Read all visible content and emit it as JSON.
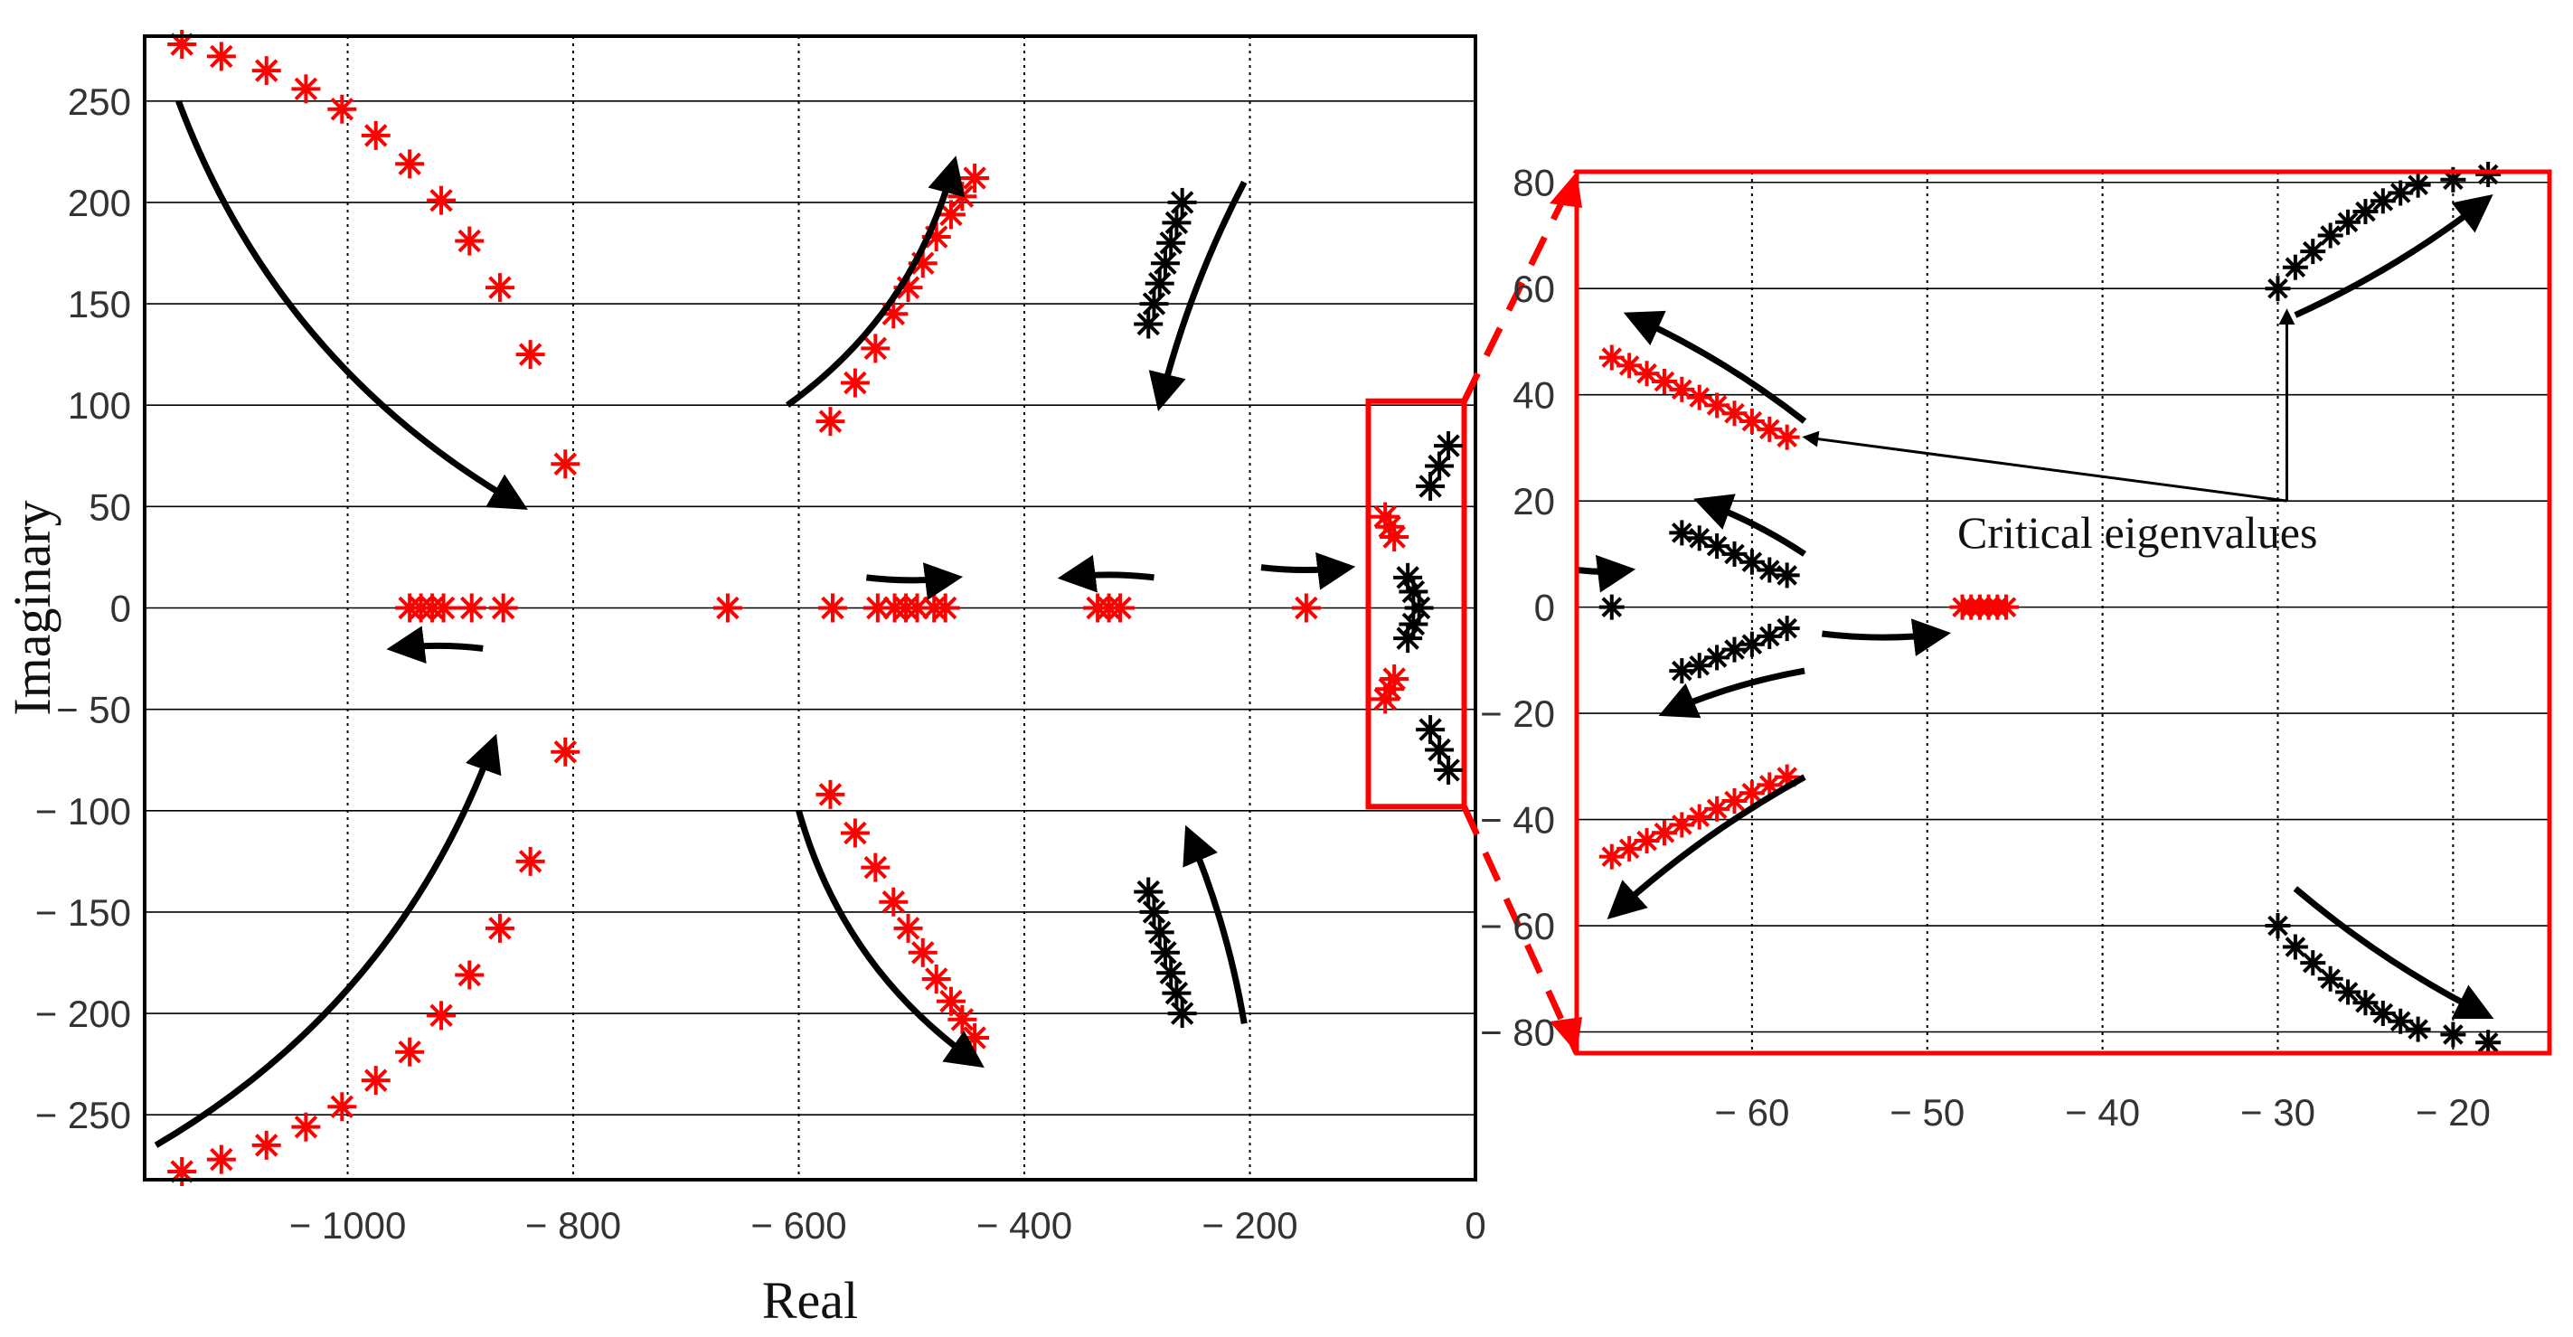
{
  "colors": {
    "red": "#ff0000",
    "black": "#000000",
    "grid_minor": "#9a9a9a",
    "grid_major": "#000000"
  },
  "chart_data": [
    {
      "type": "scatter",
      "title": "",
      "xlabel": "Real",
      "ylabel": "Imaginary",
      "xlim": [
        -1180,
        0
      ],
      "ylim": [
        -282,
        282
      ],
      "xticks": [
        -1000,
        -800,
        -600,
        -400,
        -200,
        0
      ],
      "xtick_labels": [
        "− 1000",
        "− 800",
        "− 600",
        "− 400",
        "− 200",
        "0"
      ],
      "yticks": [
        250,
        200,
        150,
        100,
        50,
        0,
        -50,
        -100,
        -150,
        -200,
        -250
      ],
      "ytick_labels": [
        "250",
        "200",
        "150",
        "100",
        "50",
        "0",
        "− 50",
        "− 100",
        "− 150",
        "− 200",
        "− 250"
      ],
      "grid": true,
      "zoom_box": {
        "x": [
          -95,
          -10
        ],
        "y": [
          -98,
          102
        ]
      },
      "series": [
        {
          "color": "red",
          "marker": "asterisk",
          "points": [
            [
              -1147,
              278
            ],
            [
              -1112,
              272
            ],
            [
              -1072,
              265
            ],
            [
              -1037,
              256
            ],
            [
              -1005,
              246
            ],
            [
              -975,
              233
            ],
            [
              -945,
              219
            ],
            [
              -917,
              201
            ],
            [
              -892,
              181
            ],
            [
              -865,
              158
            ],
            [
              -838,
              125
            ],
            [
              -807,
              71
            ],
            [
              -1147,
              -278
            ],
            [
              -1112,
              -272
            ],
            [
              -1072,
              -265
            ],
            [
              -1037,
              -256
            ],
            [
              -1005,
              -246
            ],
            [
              -975,
              -233
            ],
            [
              -945,
              -219
            ],
            [
              -917,
              -201
            ],
            [
              -892,
              -181
            ],
            [
              -865,
              -158
            ],
            [
              -838,
              -125
            ],
            [
              -807,
              -71
            ],
            [
              -444,
              212
            ],
            [
              -455,
              203
            ],
            [
              -465,
              194
            ],
            [
              -478,
              183
            ],
            [
              -490,
              170
            ],
            [
              -503,
              158
            ],
            [
              -516,
              145
            ],
            [
              -532,
              128
            ],
            [
              -550,
              111
            ],
            [
              -572,
              92
            ],
            [
              -444,
              -212
            ],
            [
              -455,
              -203
            ],
            [
              -465,
              -194
            ],
            [
              -478,
              -183
            ],
            [
              -490,
              -170
            ],
            [
              -503,
              -158
            ],
            [
              -516,
              -145
            ],
            [
              -532,
              -128
            ],
            [
              -550,
              -111
            ],
            [
              -572,
              -92
            ],
            [
              -945,
              0
            ],
            [
              -935,
              0
            ],
            [
              -925,
              0
            ],
            [
              -915,
              0
            ],
            [
              -890,
              0
            ],
            [
              -862,
              0
            ],
            [
              -663,
              0
            ],
            [
              -570,
              0
            ],
            [
              -530,
              0
            ],
            [
              -515,
              0
            ],
            [
              -505,
              0
            ],
            [
              -495,
              0
            ],
            [
              -480,
              0
            ],
            [
              -470,
              0
            ],
            [
              -335,
              0
            ],
            [
              -325,
              0
            ],
            [
              -315,
              0
            ],
            [
              -150,
              0
            ],
            [
              -80,
              45
            ],
            [
              -76,
              40
            ],
            [
              -72,
              35
            ],
            [
              -80,
              -45
            ],
            [
              -76,
              -40
            ],
            [
              -72,
              -35
            ]
          ]
        },
        {
          "color": "black",
          "marker": "asterisk",
          "points": [
            [
              -290,
              140
            ],
            [
              -285,
              150
            ],
            [
              -280,
              160
            ],
            [
              -275,
              170
            ],
            [
              -270,
              180
            ],
            [
              -265,
              190
            ],
            [
              -260,
              200
            ],
            [
              -290,
              -140
            ],
            [
              -285,
              -150
            ],
            [
              -280,
              -160
            ],
            [
              -275,
              -170
            ],
            [
              -270,
              -180
            ],
            [
              -265,
              -190
            ],
            [
              -260,
              -200
            ],
            [
              -40,
              60
            ],
            [
              -32,
              70
            ],
            [
              -24,
              80
            ],
            [
              -40,
              -60
            ],
            [
              -32,
              -70
            ],
            [
              -24,
              -80
            ],
            [
              -60,
              15
            ],
            [
              -55,
              8
            ],
            [
              -50,
              0
            ],
            [
              -55,
              -8
            ],
            [
              -60,
              -15
            ]
          ]
        }
      ],
      "arrows": [
        {
          "from": [
            -1150,
            250
          ],
          "to": [
            -845,
            50
          ]
        },
        {
          "from": [
            -1170,
            -265
          ],
          "to": [
            -870,
            -65
          ]
        },
        {
          "from": [
            -610,
            100
          ],
          "to": [
            -462,
            220
          ]
        },
        {
          "from": [
            -600,
            -100
          ],
          "to": [
            -440,
            -225
          ]
        },
        {
          "from": [
            -205,
            210
          ],
          "to": [
            -280,
            100
          ]
        },
        {
          "from": [
            -205,
            -205
          ],
          "to": [
            -255,
            -110
          ]
        },
        {
          "from": [
            -880,
            -20
          ],
          "to": [
            -960,
            -20
          ]
        },
        {
          "from": [
            -540,
            15
          ],
          "to": [
            -460,
            15
          ]
        },
        {
          "from": [
            -285,
            15
          ],
          "to": [
            -365,
            15
          ]
        },
        {
          "from": [
            -190,
            20
          ],
          "to": [
            -112,
            20
          ]
        }
      ]
    },
    {
      "type": "scatter",
      "title": "",
      "xlabel": "",
      "ylabel": "",
      "xlim": [
        -70,
        -14.5
      ],
      "ylim": [
        -84,
        82
      ],
      "xticks": [
        -60,
        -50,
        -40,
        -30,
        -20
      ],
      "xtick_labels": [
        "− 60",
        "− 50",
        "− 40",
        "− 30",
        "− 20"
      ],
      "yticks": [
        80,
        60,
        40,
        20,
        0,
        -20,
        -40,
        -60,
        -80
      ],
      "ytick_labels": [
        "80",
        "60",
        "40",
        "20",
        "0",
        "− 20",
        "− 40",
        "− 60",
        "− 80"
      ],
      "grid": true,
      "series": [
        {
          "color": "red",
          "marker": "asterisk",
          "points": [
            [
              -68,
              47
            ],
            [
              -67,
              45.5
            ],
            [
              -66,
              44
            ],
            [
              -65,
              42.5
            ],
            [
              -64,
              41
            ],
            [
              -63,
              39.5
            ],
            [
              -62,
              38
            ],
            [
              -61,
              36.5
            ],
            [
              -60,
              35
            ],
            [
              -59,
              33.5
            ],
            [
              -58,
              32
            ],
            [
              -68,
              -47
            ],
            [
              -67,
              -45.5
            ],
            [
              -66,
              -44
            ],
            [
              -65,
              -42.5
            ],
            [
              -64,
              -41
            ],
            [
              -63,
              -39.5
            ],
            [
              -62,
              -38
            ],
            [
              -61,
              -36.5
            ],
            [
              -60,
              -35
            ],
            [
              -59,
              -33.5
            ],
            [
              -58,
              -32
            ],
            [
              -48,
              0
            ],
            [
              -47.5,
              0
            ],
            [
              -47,
              0
            ],
            [
              -46.5,
              0
            ],
            [
              -46,
              0
            ],
            [
              -45.5,
              0
            ]
          ]
        },
        {
          "color": "black",
          "marker": "asterisk",
          "points": [
            [
              -30,
              60
            ],
            [
              -29,
              64
            ],
            [
              -28,
              67
            ],
            [
              -27,
              70
            ],
            [
              -26,
              72.5
            ],
            [
              -25,
              74.5
            ],
            [
              -24,
              76.5
            ],
            [
              -23,
              78
            ],
            [
              -22,
              79.5
            ],
            [
              -20,
              80.5
            ],
            [
              -18,
              81.5
            ],
            [
              -30,
              -60
            ],
            [
              -29,
              -64
            ],
            [
              -28,
              -67
            ],
            [
              -27,
              -70
            ],
            [
              -26,
              -72.5
            ],
            [
              -25,
              -74.5
            ],
            [
              -24,
              -76.5
            ],
            [
              -23,
              -78
            ],
            [
              -22,
              -79.5
            ],
            [
              -20,
              -80.5
            ],
            [
              -18,
              -82
            ],
            [
              -64,
              14
            ],
            [
              -63,
              13
            ],
            [
              -62,
              11.5
            ],
            [
              -61,
              10
            ],
            [
              -60,
              8.5
            ],
            [
              -59,
              7
            ],
            [
              -58,
              6
            ],
            [
              -64,
              -12
            ],
            [
              -63,
              -11
            ],
            [
              -62,
              -9.5
            ],
            [
              -61,
              -8
            ],
            [
              -60,
              -7
            ],
            [
              -59,
              -5.5
            ],
            [
              -58,
              -4
            ],
            [
              -68,
              0
            ]
          ]
        }
      ],
      "arrows": [
        {
          "from": [
            -57,
            35
          ],
          "to": [
            -67,
            55
          ]
        },
        {
          "from": [
            -57,
            10
          ],
          "to": [
            -63,
            20
          ]
        },
        {
          "from": [
            -57,
            -12
          ],
          "to": [
            -65,
            -20
          ]
        },
        {
          "from": [
            -57,
            -32
          ],
          "to": [
            -68,
            -58
          ]
        },
        {
          "from": [
            -29,
            55
          ],
          "to": [
            -18,
            77
          ]
        },
        {
          "from": [
            -29,
            -53
          ],
          "to": [
            -18,
            -77
          ]
        },
        {
          "from": [
            -56,
            -5
          ],
          "to": [
            -49,
            -5
          ]
        },
        {
          "from": [
            -70,
            7
          ],
          "to": [
            -67,
            7
          ]
        }
      ],
      "annotation": {
        "text": "Critical eigenvalues",
        "points_to": [
          [
            -57.5,
            32
          ],
          [
            -30,
            60
          ]
        ],
        "anchor": [
          -30,
          20
        ]
      }
    }
  ]
}
